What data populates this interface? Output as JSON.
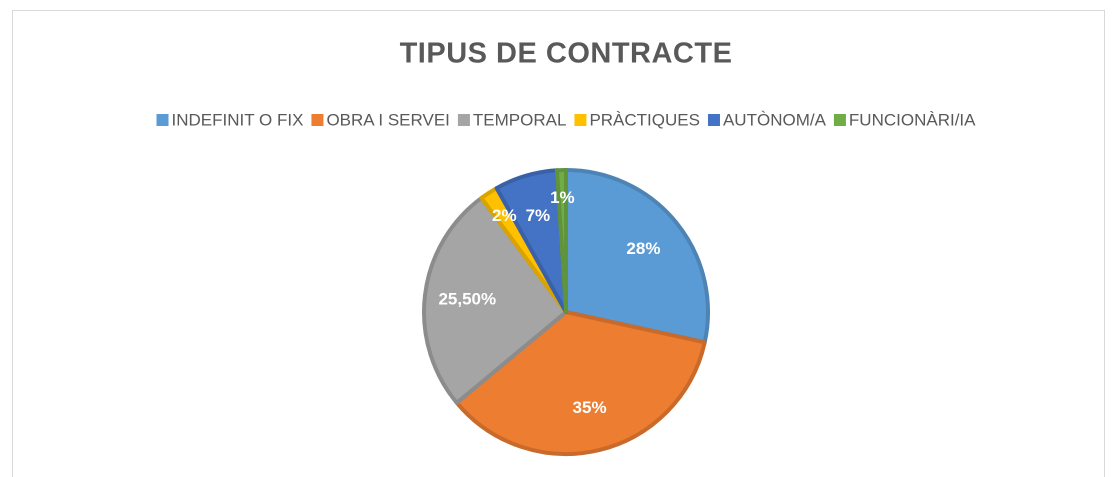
{
  "chart_data": {
    "type": "pie",
    "title": "TIPUS DE CONTRACTE",
    "categories": [
      "INDEFINIT O FIX",
      "OBRA I SERVEI",
      "TEMPORAL",
      "PRÀCTIQUES",
      "AUTÒNOM/A",
      "FUNCIONÀRI/IA"
    ],
    "values": [
      28,
      35,
      25.5,
      2,
      7,
      1
    ],
    "value_labels": [
      "28%",
      "35%",
      "25,50%",
      "2%",
      "7%",
      "1%"
    ],
    "colors": [
      "#5b9bd5",
      "#ed7d31",
      "#a5a5a5",
      "#ffc000",
      "#4472c4",
      "#70ad47"
    ],
    "legend": "top"
  }
}
